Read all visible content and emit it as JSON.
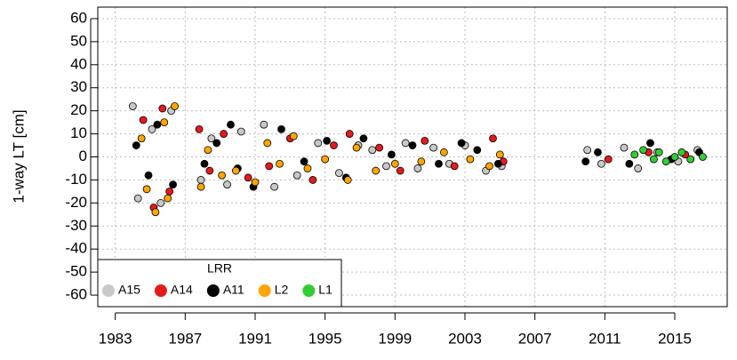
{
  "chart_data": {
    "type": "scatter",
    "y_label": "1-way LT [cm]",
    "legend_title": "LRR",
    "legend": "bottom-left",
    "grid": true,
    "xlim": [
      1982,
      2018
    ],
    "ylim": [
      -65,
      65
    ],
    "xticks": [
      1983,
      1987,
      1991,
      1995,
      1999,
      2003,
      2007,
      2011,
      2015
    ],
    "yticks": [
      -60,
      -50,
      -40,
      -30,
      -20,
      -10,
      0,
      10,
      20,
      30,
      40,
      50,
      60
    ],
    "series": [
      {
        "name": "A15",
        "color": "#c8c8c8",
        "x": [
          1984.0,
          1984.3,
          1985.1,
          1985.6,
          1986.2,
          1987.9,
          1988.5,
          1989.4,
          1990.2,
          1991.5,
          1992.1,
          1993.4,
          1994.6,
          1995.8,
          1996.9,
          1997.7,
          1998.5,
          1999.6,
          2000.3,
          2001.2,
          2002.1,
          2003.0,
          2004.2,
          2005.1,
          2010.0,
          2010.8,
          2012.1,
          2012.9,
          2014.0,
          2015.2,
          2016.3
        ],
        "values": [
          22,
          -18,
          12,
          -20,
          20,
          -10,
          8,
          -12,
          11,
          14,
          -13,
          -8,
          6,
          -7,
          5,
          3,
          -4,
          6,
          -5,
          4,
          -3,
          5,
          -6,
          -4,
          3,
          -3,
          4,
          -5,
          2,
          -2,
          3
        ]
      },
      {
        "name": "A14",
        "color": "#e8191c",
        "x": [
          1984.6,
          1985.2,
          1985.7,
          1986.1,
          1987.8,
          1988.4,
          1989.2,
          1990.6,
          1991.8,
          1993.0,
          1994.3,
          1995.5,
          1996.4,
          1998.1,
          1999.3,
          2000.7,
          2002.4,
          2004.6,
          2005.2,
          2011.2,
          2013.5,
          2015.6
        ],
        "values": [
          16,
          -22,
          21,
          -15,
          12,
          -6,
          10,
          -9,
          -4,
          8,
          -10,
          5,
          10,
          4,
          -6,
          7,
          -4,
          8,
          -2,
          -1,
          2,
          1
        ]
      },
      {
        "name": "A11",
        "color": "#000000",
        "x": [
          1984.2,
          1984.9,
          1985.4,
          1986.3,
          1988.1,
          1988.8,
          1989.6,
          1990.0,
          1990.9,
          1992.5,
          1993.8,
          1995.1,
          1996.2,
          1997.2,
          1998.8,
          2000.0,
          2001.5,
          2002.8,
          2003.7,
          2004.9,
          2009.9,
          2010.6,
          2012.4,
          2013.6,
          2014.8,
          2016.4
        ],
        "values": [
          5,
          -8,
          14,
          -12,
          -3,
          6,
          14,
          -5,
          -13,
          12,
          -2,
          7,
          -9,
          8,
          1,
          5,
          -3,
          6,
          3,
          -3,
          -2,
          2,
          -3,
          6,
          -1,
          2
        ]
      },
      {
        "name": "L2",
        "color": "#ffa500",
        "x": [
          1984.5,
          1984.8,
          1985.3,
          1985.8,
          1986.0,
          1986.4,
          1987.9,
          1988.3,
          1989.1,
          1989.9,
          1991.0,
          1991.7,
          1992.4,
          1993.2,
          1994.0,
          1995.0,
          1996.3,
          1996.8,
          1997.9,
          1999.0,
          2000.5,
          2001.8,
          2003.3,
          2004.4,
          2005.0
        ],
        "values": [
          8,
          -14,
          -24,
          15,
          -18,
          22,
          -13,
          3,
          -8,
          -6,
          -11,
          6,
          -3,
          9,
          -5,
          -1,
          -10,
          4,
          -6,
          -3,
          -2,
          2,
          -1,
          -4,
          1
        ]
      },
      {
        "name": "L1",
        "color": "#32cd32",
        "x": [
          2012.7,
          2013.2,
          2013.8,
          2014.1,
          2014.5,
          2015.0,
          2015.4,
          2015.9,
          2016.6
        ],
        "values": [
          1,
          3,
          -1,
          2,
          -2,
          0,
          2,
          -1,
          0
        ]
      }
    ]
  }
}
